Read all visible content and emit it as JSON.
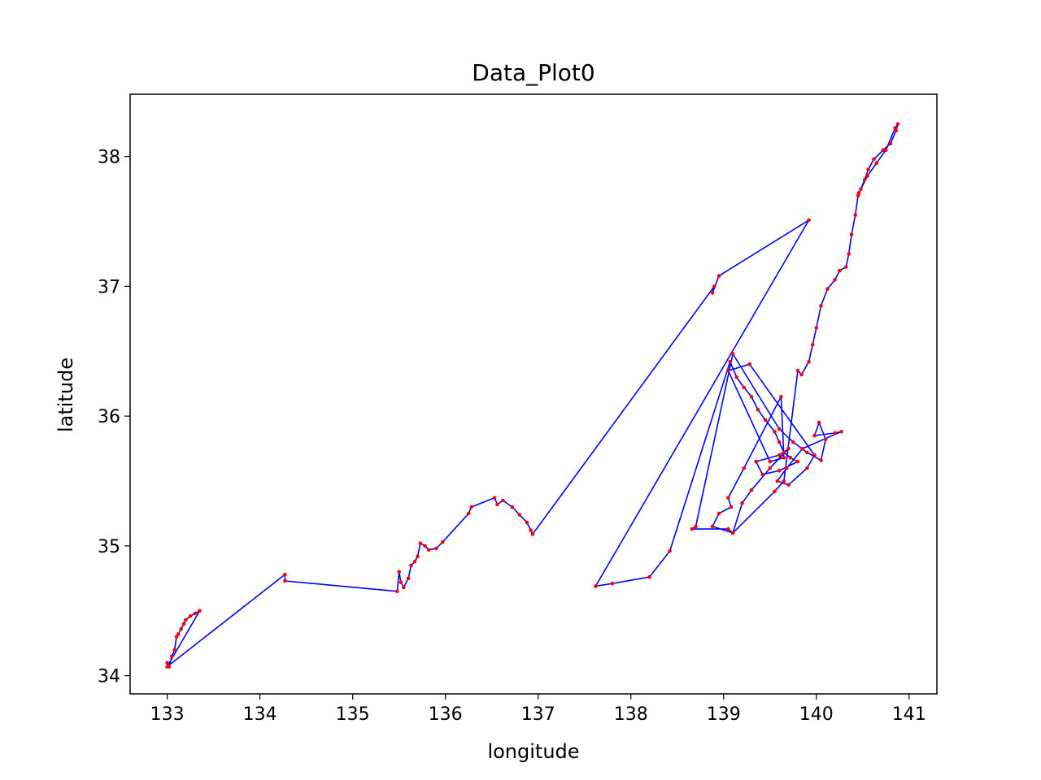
{
  "chart_data": {
    "type": "line",
    "title": "Data_Plot0",
    "xlabel": "longitude",
    "ylabel": "latitude",
    "xlim": [
      132.6,
      141.3
    ],
    "ylim": [
      33.86,
      38.48
    ],
    "grid": false,
    "legend": "none",
    "line_color": "#0000ff",
    "marker_color": "#ff0000",
    "x_ticks": [
      "133",
      "134",
      "135",
      "136",
      "137",
      "138",
      "139",
      "140",
      "141"
    ],
    "y_ticks": [
      "34",
      "35",
      "36",
      "37",
      "38"
    ],
    "series": [
      {
        "x": [
          133.0,
          133.02,
          133.05,
          133.08,
          133.1,
          133.12,
          133.15,
          133.18,
          133.2,
          133.25,
          133.3,
          133.35,
          133.0,
          134.27,
          134.27,
          135.48,
          135.5,
          135.52,
          135.55,
          135.6,
          135.63,
          135.67,
          135.7,
          135.73,
          135.78,
          135.82,
          135.9,
          135.97,
          136.25,
          136.28,
          136.53,
          136.56,
          136.62,
          136.72,
          136.8,
          136.88,
          136.92,
          136.94,
          138.9,
          138.88,
          138.95,
          139.92,
          137.62,
          137.8,
          138.2,
          138.42,
          139.07,
          139.14,
          139.22,
          139.3,
          139.37,
          139.45,
          139.55,
          139.6,
          139.65,
          139.72,
          139.8,
          139.6,
          139.42,
          139.35,
          139.6,
          139.7,
          139.5,
          139.3,
          139.2,
          139.1,
          139.05,
          138.66,
          138.7,
          139.1,
          139.6,
          139.75,
          139.9,
          140.05,
          140.1,
          140.03,
          139.98,
          140.2,
          140.27,
          139.85,
          139.68,
          139.58,
          139.7,
          139.9,
          139.98,
          139.28,
          139.05,
          139.5,
          139.65,
          139.62,
          139.22,
          139.05,
          139.08,
          138.95,
          138.88,
          139.1,
          139.55,
          139.65,
          139.8,
          139.84,
          139.92,
          139.96,
          140.0,
          140.05,
          140.12,
          140.2,
          140.25,
          140.32,
          140.35,
          140.38,
          140.42,
          140.45,
          140.48,
          140.52,
          140.56,
          140.62,
          140.72,
          140.8,
          140.86,
          140.88,
          140.85,
          140.75,
          140.65,
          140.55,
          140.46
        ],
        "y": [
          34.1,
          34.07,
          34.15,
          34.2,
          34.3,
          34.32,
          34.36,
          34.4,
          34.43,
          34.46,
          34.48,
          34.5,
          34.07,
          34.78,
          34.73,
          34.65,
          34.8,
          34.72,
          34.68,
          34.75,
          34.85,
          34.88,
          34.92,
          35.02,
          35.0,
          34.97,
          34.98,
          35.03,
          35.25,
          35.3,
          35.37,
          35.32,
          35.35,
          35.3,
          35.24,
          35.18,
          35.12,
          35.09,
          37.0,
          36.95,
          37.08,
          37.51,
          34.69,
          34.71,
          34.76,
          34.96,
          36.42,
          36.3,
          36.22,
          36.15,
          36.05,
          35.97,
          35.88,
          35.8,
          35.72,
          35.68,
          35.65,
          35.58,
          35.55,
          35.65,
          35.7,
          35.75,
          35.6,
          35.43,
          35.33,
          35.1,
          35.13,
          35.13,
          35.15,
          36.48,
          35.9,
          35.8,
          35.72,
          35.66,
          35.82,
          35.95,
          35.85,
          35.87,
          35.88,
          35.75,
          35.6,
          35.5,
          35.47,
          35.6,
          35.7,
          36.4,
          36.35,
          35.65,
          35.68,
          36.15,
          35.6,
          35.37,
          35.3,
          35.25,
          35.15,
          35.1,
          35.42,
          35.5,
          36.35,
          36.32,
          36.42,
          36.55,
          36.68,
          36.85,
          36.98,
          37.05,
          37.12,
          37.15,
          37.25,
          37.4,
          37.55,
          37.7,
          37.75,
          37.82,
          37.9,
          37.98,
          38.05,
          38.1,
          38.2,
          38.25,
          38.22,
          38.05,
          37.95,
          37.85,
          37.72
        ]
      }
    ]
  }
}
